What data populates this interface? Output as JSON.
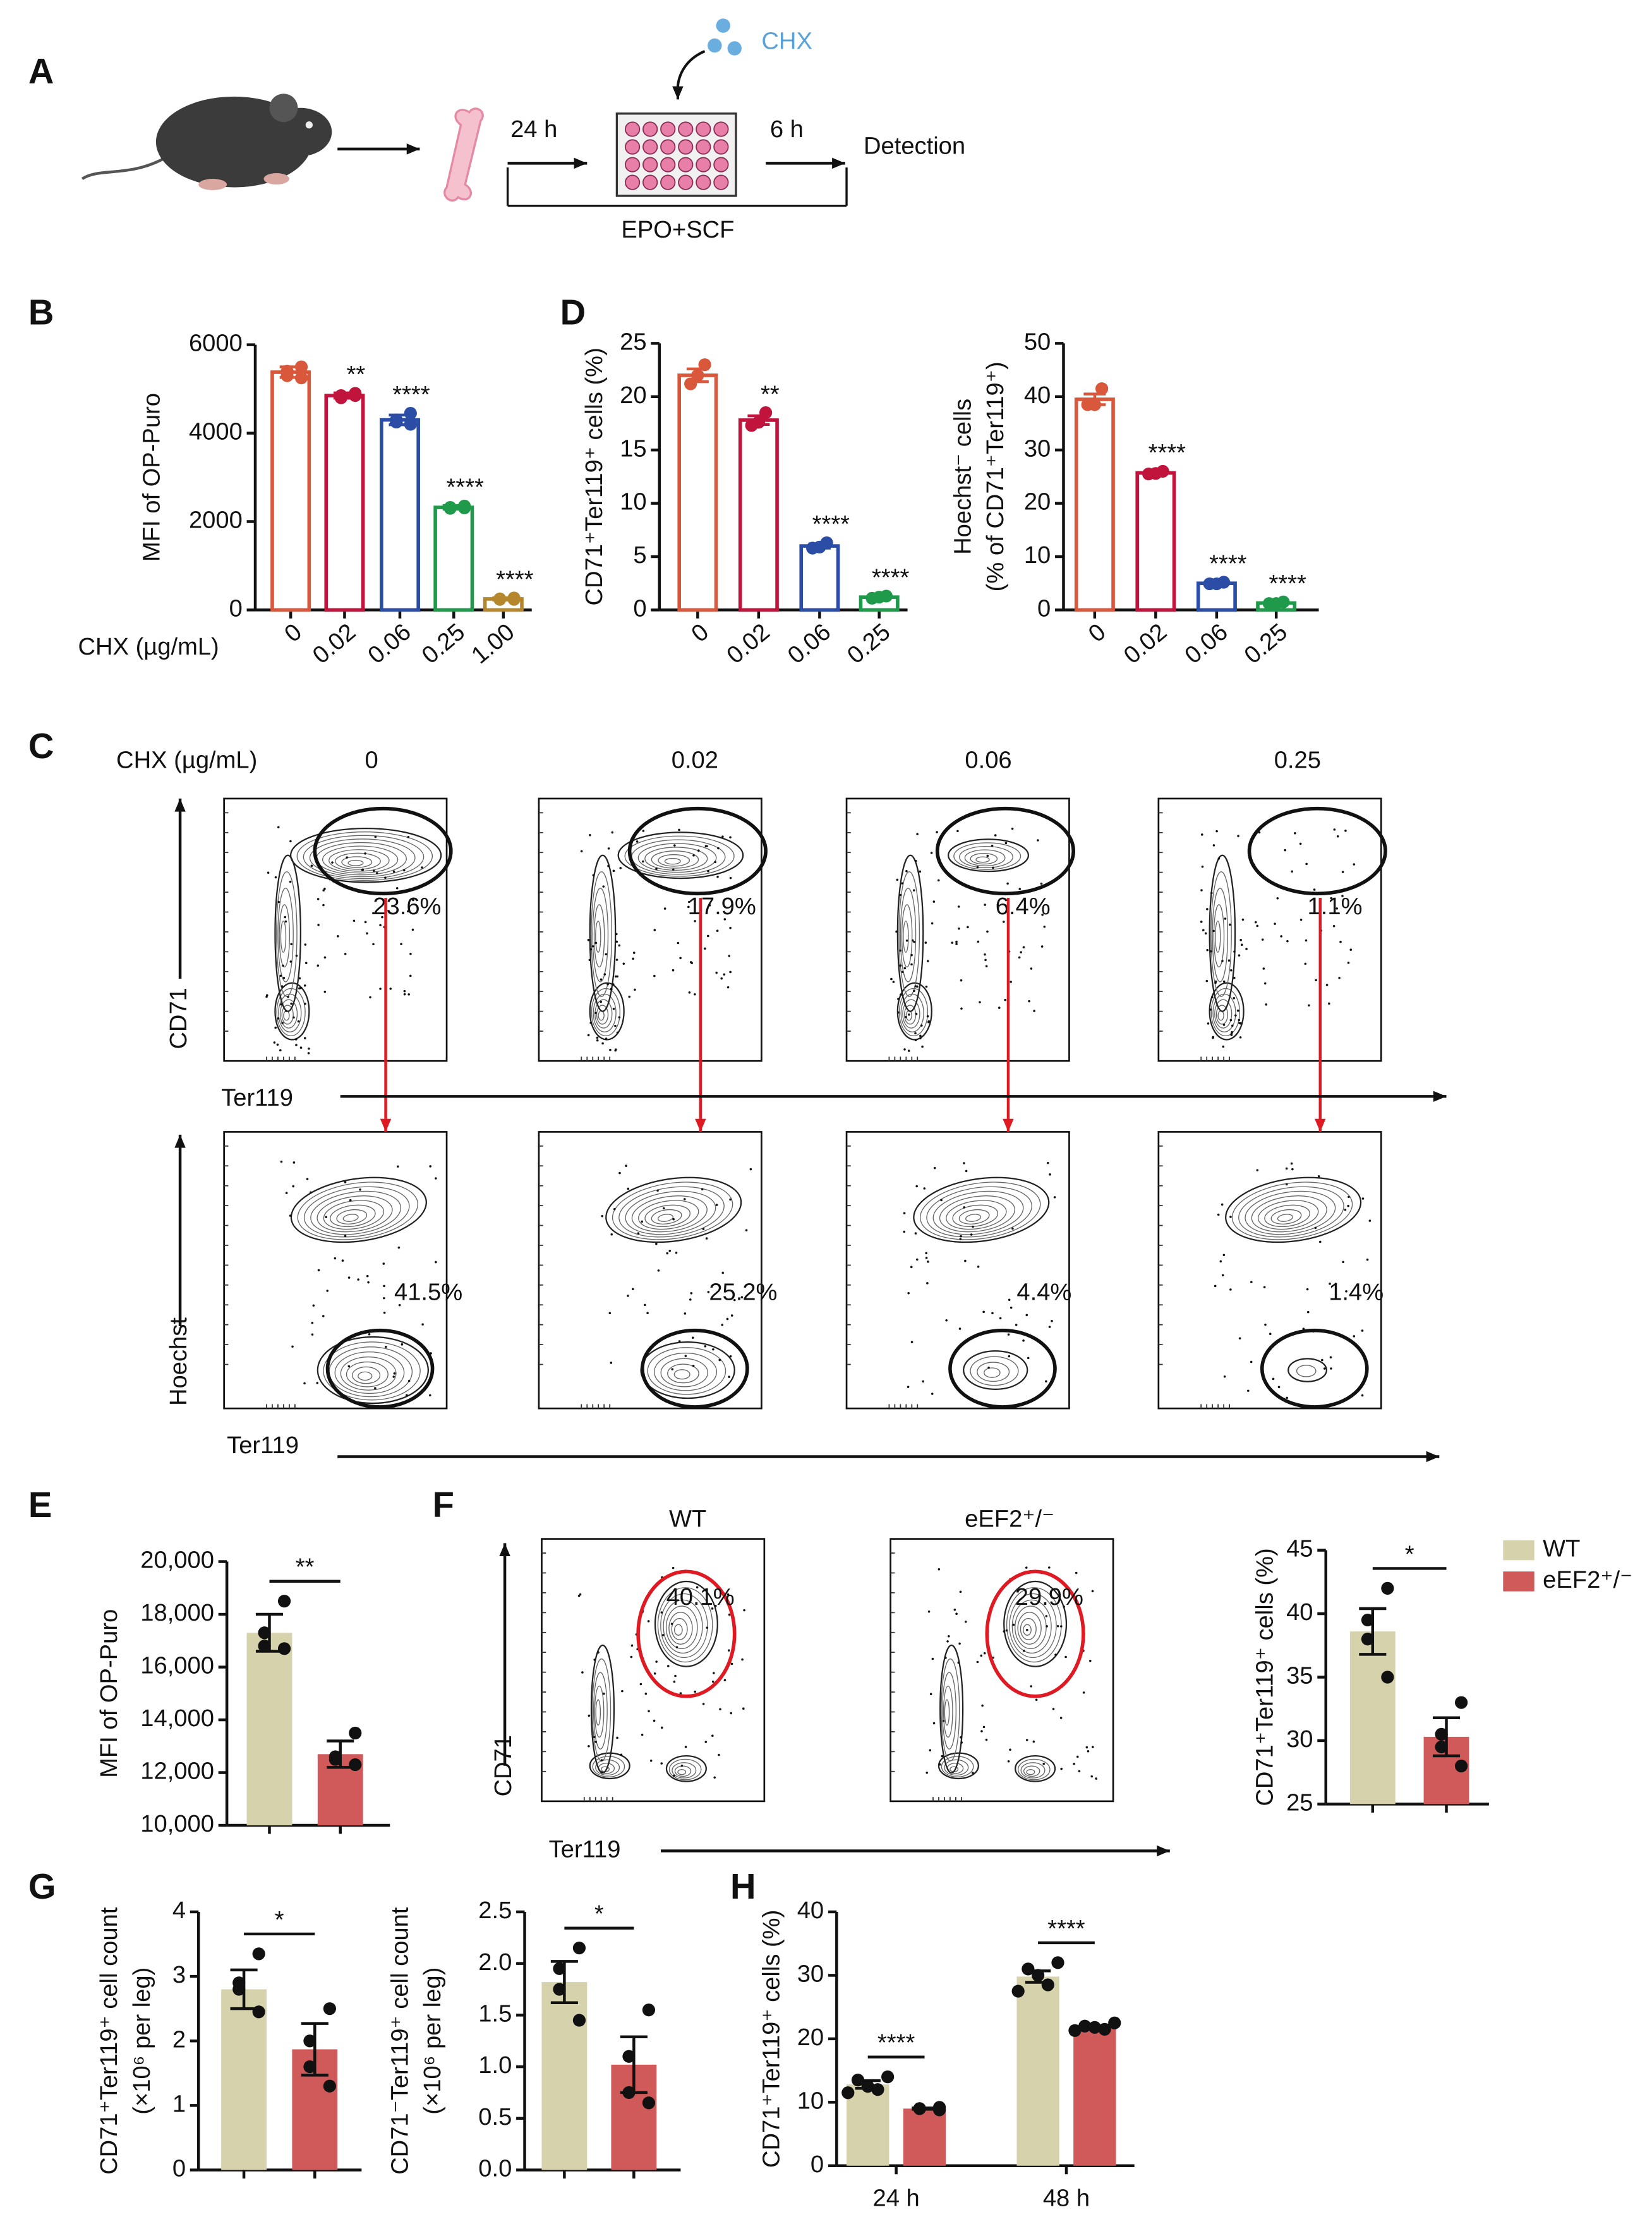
{
  "panel_labels": [
    "A",
    "B",
    "C",
    "D",
    "E",
    "F",
    "G",
    "H"
  ],
  "schematic": {
    "drug": "CHX",
    "time_1": "24 h",
    "time_2": "6 h",
    "readout": "Detection",
    "medium": "EPO+SCF"
  },
  "flow_c": {
    "condition_label": "CHX (µg/mL)",
    "concentrations": [
      "0",
      "0.02",
      "0.06",
      "0.25"
    ],
    "top_percentages": [
      "23.6%",
      "17.9%",
      "6.4%",
      "1.1%"
    ],
    "bottom_percentages": [
      "41.5%",
      "25.2%",
      "4.4%",
      "1.4%"
    ],
    "top_y_label": "CD71",
    "top_x_label": "Ter119",
    "bottom_y_label": "Hoechst",
    "bottom_x_label": "Ter119"
  },
  "flow_f": {
    "groups": [
      "WT",
      "eEF2⁺/⁻"
    ],
    "percentages": [
      "40.1%",
      "29.9%"
    ],
    "y_label": "CD71",
    "x_label": "Ter119"
  },
  "chart_data": [
    {
      "type": "bar",
      "bar_style": "outline",
      "ylabel": [
        "MFI of OP-Puro"
      ],
      "xlabel": "CHX (µg/mL)",
      "categories": [
        "0",
        "0.02",
        "0.06",
        "0.25",
        "1.00"
      ],
      "values": [
        5380,
        4850,
        4300,
        2320,
        250
      ],
      "errors": [
        120,
        60,
        110,
        40,
        25
      ],
      "points": [
        [
          5500,
          5400,
          5300,
          5250
        ],
        [
          4900,
          4850,
          4800,
          4850
        ],
        [
          4450,
          4300,
          4250,
          4200
        ],
        [
          2350,
          2320,
          2300,
          2310
        ],
        [
          270,
          250,
          240,
          240
        ]
      ],
      "colors": [
        "#d9573b",
        "#c0143c",
        "#2c4da5",
        "#1f9a4a",
        "#b5862c"
      ],
      "significance": [
        null,
        "**",
        "****",
        "****",
        "****"
      ],
      "ylim": [
        0,
        6000
      ],
      "yticks": [
        0,
        2000,
        4000,
        6000
      ]
    },
    {
      "type": "bar",
      "bar_style": "outline",
      "ylabel": [
        "CD71⁺Ter119⁺ cells (%)"
      ],
      "categories": [
        "0",
        "0.02",
        "0.06",
        "0.25"
      ],
      "values": [
        22,
        17.8,
        6,
        1.2
      ],
      "errors": [
        0.6,
        0.4,
        0.2,
        0.1
      ],
      "points": [
        [
          23,
          22,
          21.2
        ],
        [
          18.5,
          17.6,
          17.3
        ],
        [
          6.3,
          5.9,
          5.8
        ],
        [
          1.3,
          1.2,
          1.1
        ]
      ],
      "colors": [
        "#d9573b",
        "#c0143c",
        "#2c4da5",
        "#1f9a4a"
      ],
      "significance": [
        null,
        "**",
        "****",
        "****"
      ],
      "ylim": [
        0,
        25
      ],
      "yticks": [
        0,
        5,
        10,
        15,
        20,
        25
      ]
    },
    {
      "type": "bar",
      "bar_style": "outline",
      "ylabel": [
        "Hoechst⁻ cells",
        "(% of CD71⁺Ter119⁺)"
      ],
      "categories": [
        "0",
        "0.02",
        "0.06",
        "0.25"
      ],
      "values": [
        39.5,
        25.7,
        5,
        1.3
      ],
      "errors": [
        1,
        0.2,
        0.1,
        0.1
      ],
      "points": [
        [
          41.5,
          38.5,
          38.5
        ],
        [
          26,
          25.6,
          25.5
        ],
        [
          5.2,
          4.9,
          4.9
        ],
        [
          1.5,
          1.2,
          1.2
        ]
      ],
      "colors": [
        "#d9573b",
        "#c0143c",
        "#2c4da5",
        "#1f9a4a"
      ],
      "significance": [
        null,
        "****",
        "****",
        "****"
      ],
      "ylim": [
        0,
        50
      ],
      "yticks": [
        0,
        10,
        20,
        30,
        40,
        50
      ]
    },
    {
      "type": "bar",
      "bar_style": "filled",
      "ylabel": [
        "MFI of OP-Puro"
      ],
      "values": [
        17300,
        12700
      ],
      "errors": [
        700,
        500
      ],
      "points": [
        [
          18500,
          17300,
          16800,
          16700
        ],
        [
          13500,
          12600,
          12500,
          12300
        ]
      ],
      "colors": [
        "#d6d2ac",
        "#d05a5a"
      ],
      "significance": "**",
      "ylim": [
        10000,
        20000
      ],
      "yticks": [
        {
          "value": 10000,
          "label": "10,000"
        },
        {
          "value": 12000,
          "label": "12,000"
        },
        {
          "value": 14000,
          "label": "14,000"
        },
        {
          "value": 16000,
          "label": "16,000"
        },
        {
          "value": 18000,
          "label": "18,000"
        },
        {
          "value": 20000,
          "label": "20,000"
        }
      ]
    },
    {
      "type": "bar",
      "bar_style": "filled",
      "ylabel": [
        "CD71⁺Ter119⁺ cells (%)"
      ],
      "values": [
        38.6,
        30.3
      ],
      "errors": [
        1.8,
        1.5
      ],
      "points": [
        [
          42,
          39.5,
          38,
          35
        ],
        [
          33,
          30.5,
          29.5,
          28
        ]
      ],
      "colors": [
        "#d6d2ac",
        "#d05a5a"
      ],
      "significance": "*",
      "legend": [
        {
          "name": "WT",
          "color": "#d6d2ac"
        },
        {
          "name": "eEF2⁺/⁻",
          "color": "#d05a5a"
        }
      ],
      "ylim": [
        25,
        45
      ],
      "yticks": [
        25,
        30,
        35,
        40,
        45
      ]
    },
    {
      "type": "bar",
      "bar_style": "filled",
      "ylabel": [
        "CD71⁺Ter119⁺ cell count",
        "(×10⁶ per leg)"
      ],
      "values": [
        2.8,
        1.87
      ],
      "errors": [
        0.3,
        0.4
      ],
      "points": [
        [
          3.35,
          2.9,
          2.8,
          2.45
        ],
        [
          2.5,
          2.0,
          1.6,
          1.3
        ]
      ],
      "colors": [
        "#d6d2ac",
        "#d05a5a"
      ],
      "significance": "*",
      "ylim": [
        0,
        4
      ],
      "yticks": [
        0,
        1,
        2,
        3,
        4
      ]
    },
    {
      "type": "bar",
      "bar_style": "filled",
      "ylabel": [
        "CD71⁻Ter119⁺ cell count",
        "(×10⁶ per leg)"
      ],
      "values": [
        1.82,
        1.02
      ],
      "errors": [
        0.2,
        0.27
      ],
      "points": [
        [
          2.15,
          1.95,
          1.75,
          1.45
        ],
        [
          1.55,
          1.1,
          0.75,
          0.65
        ]
      ],
      "colors": [
        "#d6d2ac",
        "#d05a5a"
      ],
      "significance": "*",
      "ylim": [
        0,
        2.5
      ],
      "yticks": [
        {
          "value": 0,
          "label": "0.0"
        },
        0.5,
        {
          "value": 1,
          "label": "1.0"
        },
        1.5,
        {
          "value": 2,
          "label": "2.0"
        },
        2.5
      ]
    },
    {
      "type": "grouped_bar",
      "ylabel": [
        "CD71⁺Ter119⁺ cells (%)"
      ],
      "categories": [
        "24 h",
        "48 h"
      ],
      "series": [
        {
          "color": "#d6d2ac",
          "values": [
            12.8,
            29.8
          ],
          "errors": [
            0.6,
            0.9
          ],
          "points": [
            [
              14,
              13.5,
              12.5,
              12,
              11.5
            ],
            [
              32,
              31,
              30,
              28.5,
              27.5
            ]
          ]
        },
        {
          "color": "#d05a5a",
          "values": [
            9,
            21.8
          ],
          "errors": [
            0.1,
            0.2
          ],
          "points": [
            [
              9.2,
              9,
              9,
              8.8
            ],
            [
              22.5,
              22,
              21.8,
              21.5,
              21.3
            ]
          ]
        }
      ],
      "significance": [
        "****",
        "****"
      ],
      "ylim": [
        0,
        40
      ],
      "yticks": [
        0,
        10,
        20,
        30,
        40
      ]
    }
  ]
}
